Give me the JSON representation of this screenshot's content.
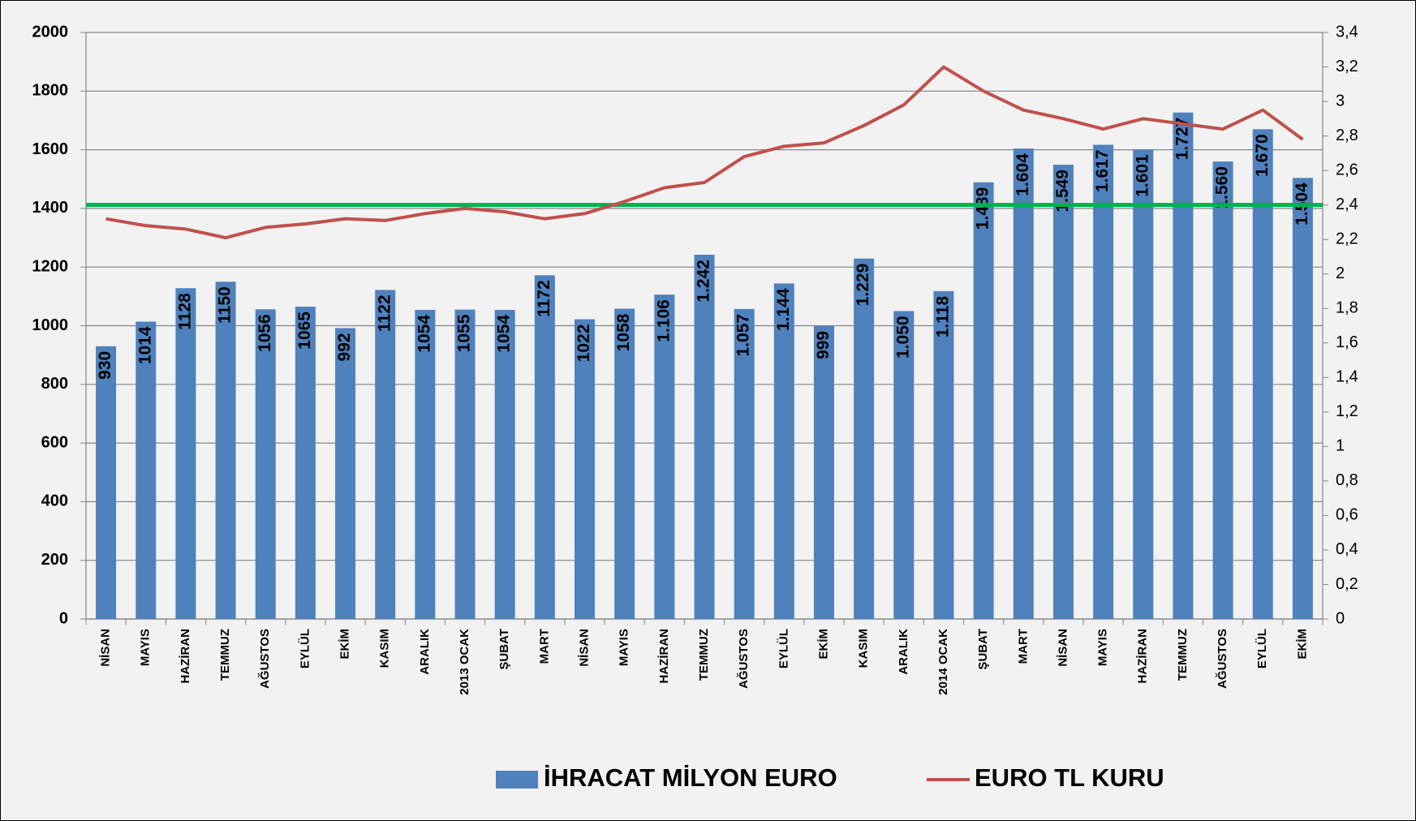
{
  "chart_data": {
    "type": "bar_line",
    "categories": [
      "NİSAN",
      "MAYIS",
      "HAZİRAN",
      "TEMMUZ",
      "AĞUSTOS",
      "EYLÜL",
      "EKİM",
      "KASIM",
      "ARALIK",
      "2013 OCAK",
      "ŞUBAT",
      "MART",
      "NİSAN",
      "MAYIS",
      "HAZİRAN",
      "TEMMUZ",
      "AĞUSTOS",
      "EYLÜL",
      "EKİM",
      "KASIM",
      "ARALIK",
      "2014 OCAK",
      "ŞUBAT",
      "MART",
      "NİSAN",
      "MAYIS",
      "HAZİRAN",
      "TEMMUZ",
      "AĞUSTOS",
      "EYLÜL",
      "EKİM"
    ],
    "series": [
      {
        "name": "İHRACAT MİLYON EURO",
        "color": "#4f81bd",
        "type": "bar",
        "values": [
          930,
          1014,
          1128,
          1150,
          1056,
          1065,
          992,
          1122,
          1054,
          1055,
          1054,
          1172,
          1022,
          1058,
          1106,
          1242,
          1057,
          1144,
          999,
          1229,
          1050,
          1118,
          1489,
          1604,
          1549,
          1617,
          1601,
          1727,
          1560,
          1670,
          1504
        ],
        "value_labels": [
          "930",
          "1014",
          "1128",
          "1150",
          "1056",
          "1065",
          "992",
          "1122",
          "1054",
          "1055",
          "1054",
          "1172",
          "1022",
          "1058",
          "1.106",
          "1.242",
          "1.057",
          "1.144",
          "999",
          "1.229",
          "1.050",
          "1.118",
          "1.489",
          "1.604",
          "1.549",
          "1.617",
          "1.601",
          "1.727",
          "1.560",
          "1.670",
          "1.504"
        ]
      },
      {
        "name": "EURO TL KURU",
        "color": "#c0504d",
        "type": "line",
        "axis": "y2",
        "values": [
          2.32,
          2.28,
          2.26,
          2.21,
          2.27,
          2.29,
          2.32,
          2.31,
          2.35,
          2.38,
          2.36,
          2.32,
          2.35,
          2.42,
          2.5,
          2.53,
          2.68,
          2.74,
          2.76,
          2.86,
          2.98,
          3.2,
          3.06,
          2.95,
          2.9,
          2.84,
          2.9,
          2.87,
          2.84,
          2.95,
          2.78
        ]
      }
    ],
    "ylim": [
      0,
      2000
    ],
    "yticks": [
      0,
      200,
      400,
      600,
      800,
      1000,
      1200,
      1400,
      1600,
      1800,
      2000
    ],
    "y2lim": [
      0,
      3.4
    ],
    "y2ticks": [
      0,
      {
        "value": 0.2,
        "label": "0,2"
      },
      {
        "value": 0.4,
        "label": "0,4"
      },
      {
        "value": 0.6,
        "label": "0,6"
      },
      {
        "value": 0.8,
        "label": "0,8"
      },
      1,
      {
        "value": 1.2,
        "label": "1,2"
      },
      {
        "value": 1.4,
        "label": "1,4"
      },
      {
        "value": 1.6,
        "label": "1,6"
      },
      {
        "value": 1.8,
        "label": "1,8"
      },
      2,
      {
        "value": 2.2,
        "label": "2,2"
      },
      {
        "value": 2.4,
        "label": "2,4"
      },
      {
        "value": 2.6,
        "label": "2,6"
      },
      {
        "value": 2.8,
        "label": "2,8"
      },
      3,
      {
        "value": 3.2,
        "label": "3,2"
      },
      {
        "value": 3.4,
        "label": "3,4"
      }
    ],
    "reference_line": {
      "value": 2.4,
      "axis": "y2",
      "color": "#00b050"
    },
    "grid": true,
    "legend": "bottom"
  }
}
